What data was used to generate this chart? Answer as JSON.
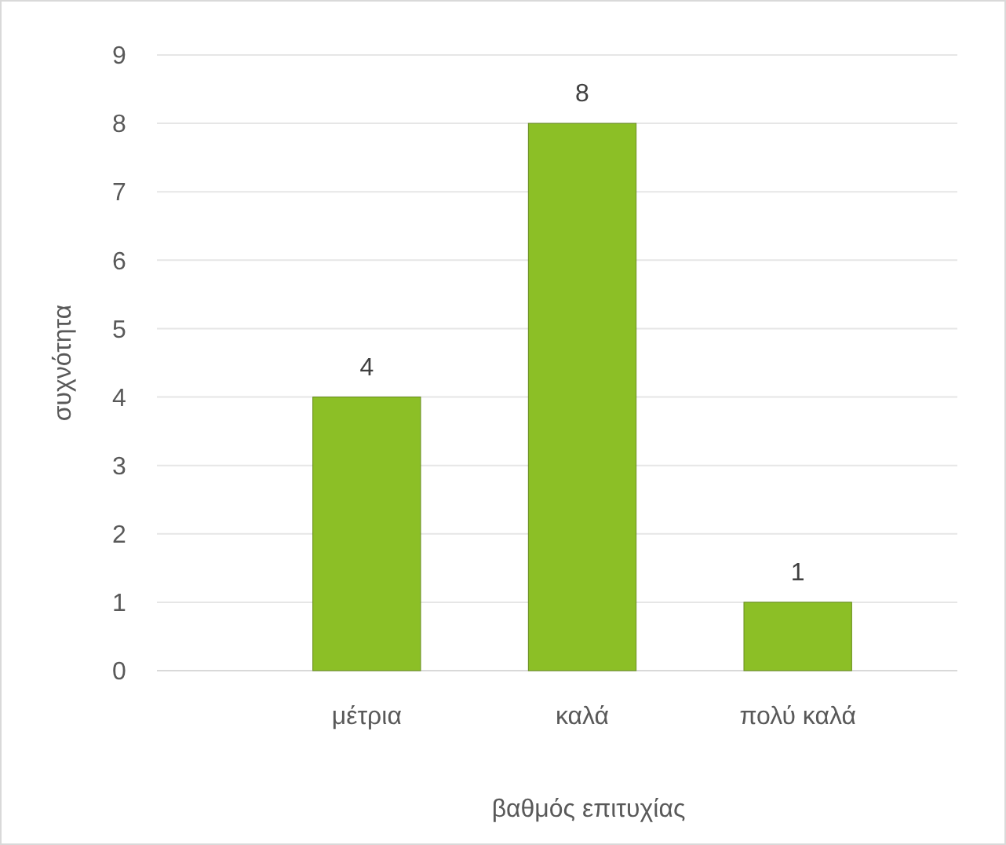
{
  "chart_data": {
    "type": "bar",
    "xlabel": "βαθμός επιτυχίας",
    "ylabel": "συχνότητα",
    "categories": [
      "μέτρια",
      "καλά",
      "πολύ καλά"
    ],
    "values": [
      4,
      8,
      1
    ],
    "color": "#8cbf26",
    "ylim": [
      0,
      9
    ],
    "yticks": [
      0,
      1,
      2,
      3,
      4,
      5,
      6,
      7,
      8,
      9
    ],
    "grid": "y",
    "data_labels": true
  }
}
